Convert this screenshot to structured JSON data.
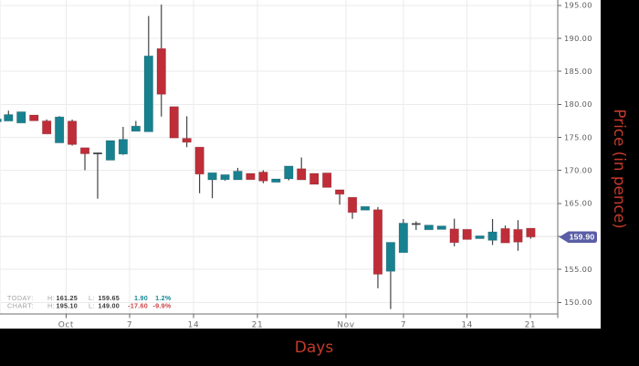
{
  "chart_data": {
    "type": "candlestick",
    "xlabel": "Days",
    "ylabel": "Price (in pence)",
    "ylim": [
      148.3,
      195.8
    ],
    "grid": true,
    "y_ticks": [
      "150.00",
      "155.00",
      "160.00",
      "165.00",
      "170.00",
      "175.00",
      "180.00",
      "185.00",
      "190.00",
      "195.00"
    ],
    "x_ticks": [
      {
        "label": "Oct",
        "x": 72.4
      },
      {
        "label": "7",
        "x": 142.0
      },
      {
        "label": "14",
        "x": 212.0
      },
      {
        "label": "21",
        "x": 282.0
      },
      {
        "label": "Nov",
        "x": 379.0
      },
      {
        "label": "7",
        "x": 442.0
      },
      {
        "label": "14",
        "x": 511.7
      },
      {
        "label": "21",
        "x": 580.9
      }
    ],
    "candles": [
      {
        "o": 177.35,
        "h": 177.79,
        "l": 177.35,
        "c": 177.79
      },
      {
        "o": 177.46,
        "h": 179.04,
        "l": 177.46,
        "c": 178.46
      },
      {
        "o": 177.17,
        "h": 178.88,
        "l": 177.17,
        "c": 178.88
      },
      {
        "o": 178.39,
        "h": 178.39,
        "l": 177.5,
        "c": 177.5
      },
      {
        "o": 177.5,
        "h": 177.72,
        "l": 175.51,
        "c": 175.51
      },
      {
        "o": 174.16,
        "h": 178.21,
        "l": 174.16,
        "c": 178.1
      },
      {
        "o": 177.47,
        "h": 177.7,
        "l": 173.76,
        "c": 173.91
      },
      {
        "o": 173.44,
        "h": 173.44,
        "l": 170.02,
        "c": 172.51
      },
      {
        "o": 172.57,
        "h": 172.68,
        "l": 165.71,
        "c": 172.57
      },
      {
        "o": 171.54,
        "h": 174.52,
        "l": 171.54,
        "c": 174.52
      },
      {
        "o": 172.46,
        "h": 176.59,
        "l": 172.35,
        "c": 174.7
      },
      {
        "o": 175.91,
        "h": 177.49,
        "l": 175.91,
        "c": 176.71
      },
      {
        "o": 175.84,
        "h": 193.38,
        "l": 175.84,
        "c": 187.34
      },
      {
        "o": 188.45,
        "h": 195.1,
        "l": 178.15,
        "c": 181.52
      },
      {
        "o": 179.66,
        "h": 179.66,
        "l": 174.9,
        "c": 174.9
      },
      {
        "o": 174.86,
        "h": 178.19,
        "l": 173.51,
        "c": 174.25
      },
      {
        "o": 173.53,
        "h": 173.53,
        "l": 166.54,
        "c": 169.43
      },
      {
        "o": 168.57,
        "h": 169.65,
        "l": 165.78,
        "c": 169.65
      },
      {
        "o": 168.59,
        "h": 169.36,
        "l": 168.45,
        "c": 169.36
      },
      {
        "o": 168.57,
        "h": 170.38,
        "l": 168.57,
        "c": 169.89
      },
      {
        "o": 169.55,
        "h": 169.55,
        "l": 168.59,
        "c": 168.59
      },
      {
        "o": 169.75,
        "h": 170.02,
        "l": 168.06,
        "c": 168.39
      },
      {
        "o": 168.19,
        "h": 168.71,
        "l": 168.19,
        "c": 168.71
      },
      {
        "o": 168.71,
        "h": 170.66,
        "l": 168.49,
        "c": 170.66
      },
      {
        "o": 170.26,
        "h": 171.95,
        "l": 168.56,
        "c": 168.56
      },
      {
        "o": 169.55,
        "h": 169.55,
        "l": 167.88,
        "c": 167.88
      },
      {
        "o": 169.62,
        "h": 169.62,
        "l": 167.41,
        "c": 167.41
      },
      {
        "o": 167.07,
        "h": 167.07,
        "l": 164.8,
        "c": 166.38
      },
      {
        "o": 165.93,
        "h": 165.93,
        "l": 162.66,
        "c": 163.62
      },
      {
        "o": 163.97,
        "h": 164.54,
        "l": 163.97,
        "c": 164.54
      },
      {
        "o": 164.05,
        "h": 164.45,
        "l": 152.15,
        "c": 154.27
      },
      {
        "o": 154.71,
        "h": 159.11,
        "l": 149.0,
        "c": 159.11
      },
      {
        "o": 157.54,
        "h": 162.62,
        "l": 157.54,
        "c": 162.02
      },
      {
        "o": 161.88,
        "h": 162.28,
        "l": 160.97,
        "c": 161.88
      },
      {
        "o": 161.0,
        "h": 161.72,
        "l": 161.0,
        "c": 161.72
      },
      {
        "o": 161.05,
        "h": 161.59,
        "l": 161.05,
        "c": 161.59
      },
      {
        "o": 161.14,
        "h": 162.68,
        "l": 158.5,
        "c": 159.06
      },
      {
        "o": 161.08,
        "h": 161.08,
        "l": 159.53,
        "c": 159.53
      },
      {
        "o": 159.66,
        "h": 160.1,
        "l": 159.66,
        "c": 160.1
      },
      {
        "o": 159.4,
        "h": 162.63,
        "l": 158.7,
        "c": 160.69
      },
      {
        "o": 161.21,
        "h": 161.65,
        "l": 159.01,
        "c": 159.01
      },
      {
        "o": 161.07,
        "h": 162.46,
        "l": 157.82,
        "c": 159.13
      },
      {
        "o": 161.25,
        "h": 161.25,
        "l": 159.65,
        "c": 159.9
      }
    ],
    "last_price": "159.90",
    "legend_position": "bottom-left",
    "colors": {
      "up": "#17818f",
      "down": "#bf2d38",
      "doji": "#3f4447",
      "wick": "#3f4447",
      "price_tag": "#5a5ea6",
      "axis_title": "#c43a2b",
      "grid": "#ebebeb"
    }
  },
  "summary": {
    "today": {
      "label": "TODAY:",
      "high_label": "H:",
      "high": "161.25",
      "low_label": "L:",
      "low": "159.65",
      "change": "1.90",
      "change_pct": "1.2%",
      "direction": "up"
    },
    "chart": {
      "label": "CHART:",
      "high_label": "H:",
      "high": "195.10",
      "low_label": "L:",
      "low": "149.00",
      "change": "-17.60",
      "change_pct": "-9.9%",
      "direction": "down"
    }
  },
  "price_tag": {
    "value": "159.90"
  },
  "axes": {
    "x_title": "Days",
    "y_title": "Price (in pence)"
  }
}
